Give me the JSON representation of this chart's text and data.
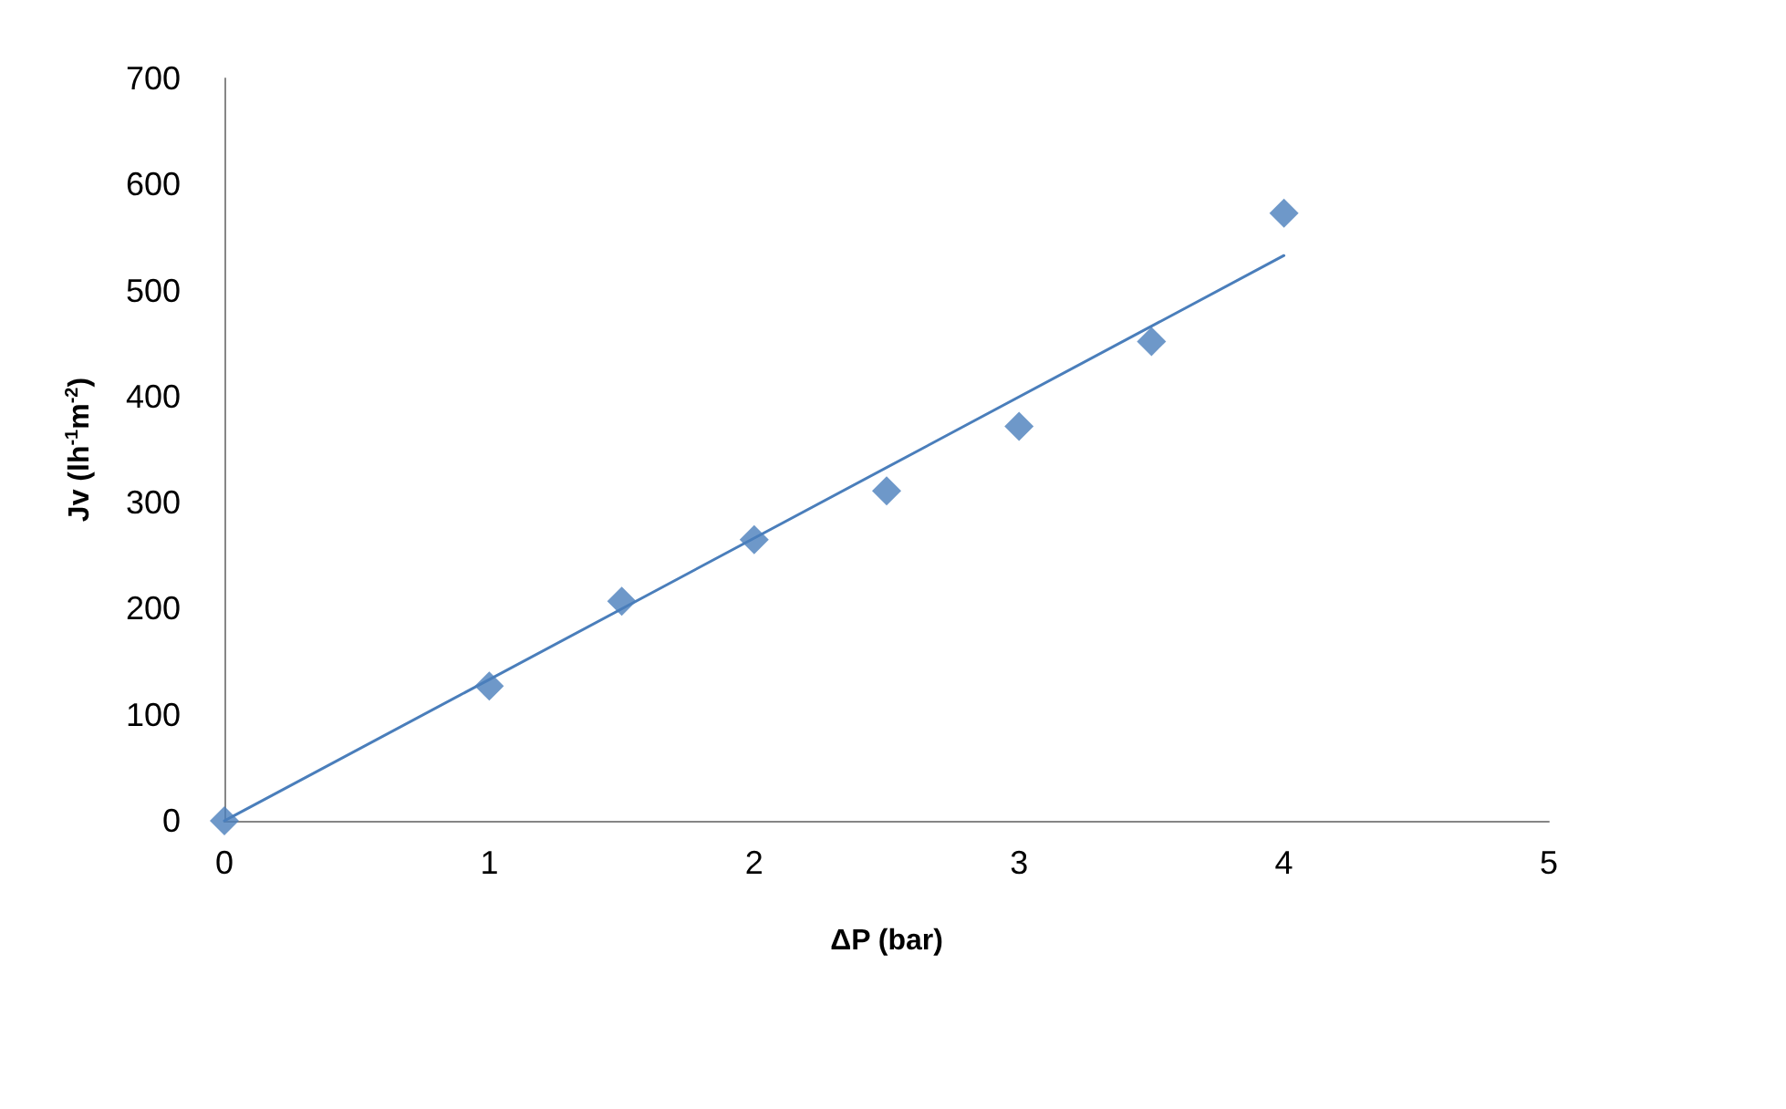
{
  "chart_data": {
    "type": "scatter",
    "xlabel": "ΔP (bar)",
    "ylabel": "Jv (lh$^{-1}$m$^{-2}$)",
    "x": [
      0,
      1,
      1.5,
      2,
      2.5,
      3,
      3.5,
      4
    ],
    "series": [
      {
        "color": "#4a7ebb",
        "marker": "diamond",
        "values": [
          0,
          127,
          207,
          265,
          311,
          372,
          452,
          573
        ]
      },
      {
        "type": "line",
        "color": "#4a7ebb",
        "marker": "none",
        "x": [
          0,
          4
        ],
        "values": [
          0,
          533
        ]
      }
    ],
    "xlim": [
      0,
      5
    ],
    "xticks": [
      0,
      1,
      2,
      3,
      4,
      5
    ],
    "ylim": [
      0,
      700
    ],
    "yticks": [
      0,
      100,
      200,
      300,
      400,
      500,
      600,
      700
    ],
    "grid": false
  }
}
